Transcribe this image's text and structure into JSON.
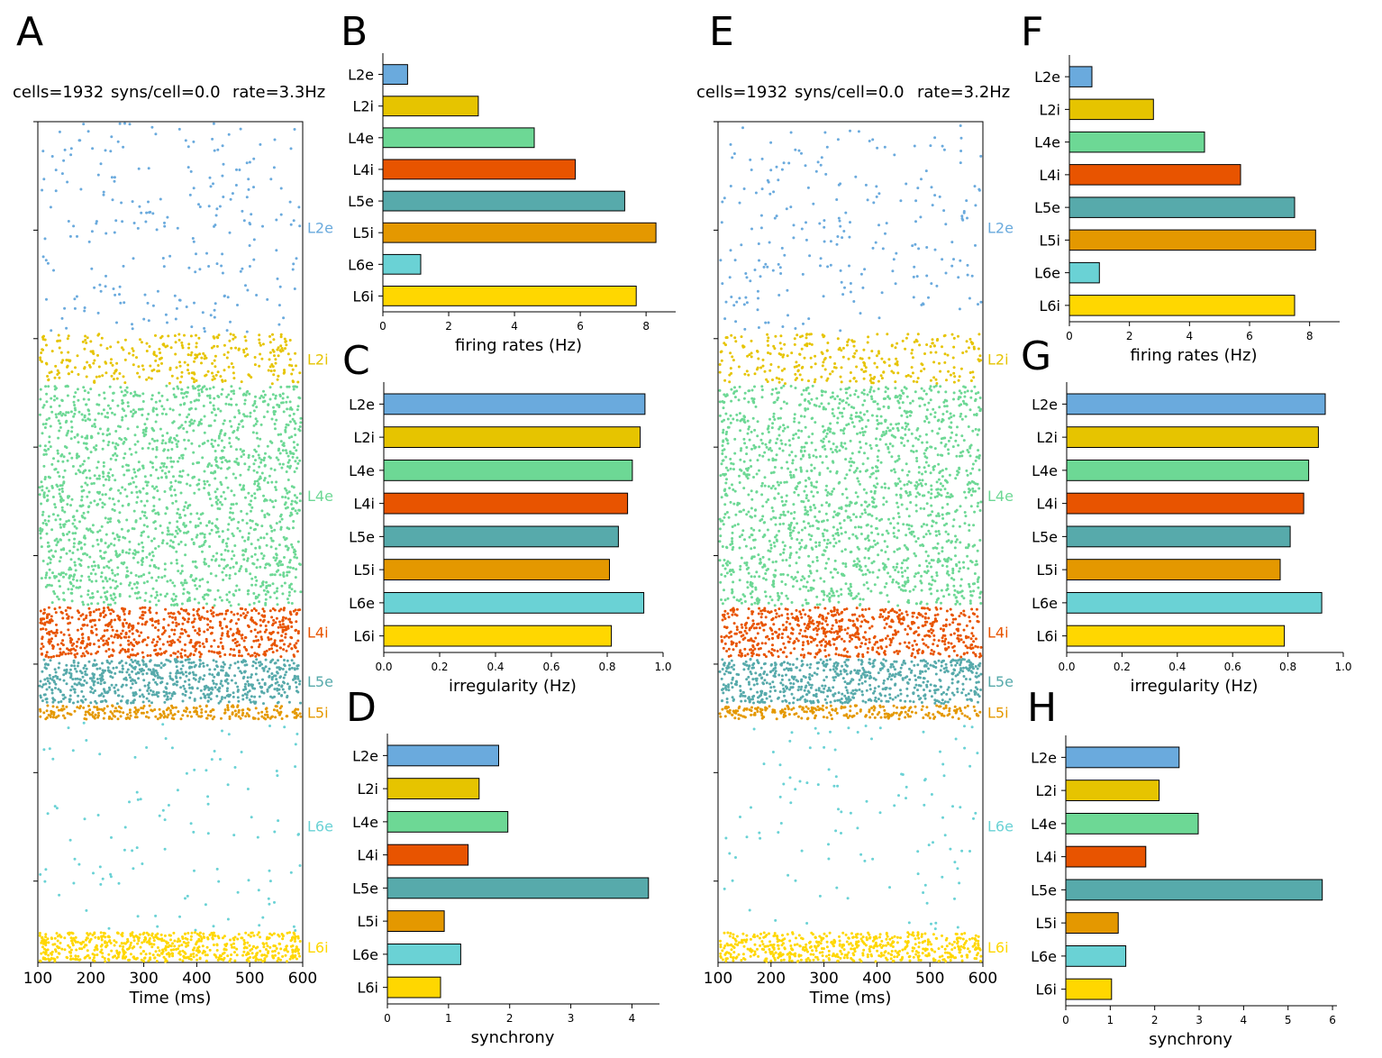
{
  "colors": {
    "L2e": "#6aaadd",
    "L2i": "#e6c400",
    "L4e": "#6dd895",
    "L4i": "#e85400",
    "L5e": "#57aaab",
    "L5i": "#e49800",
    "L6e": "#6ad2d5",
    "L6i": "#ffd700"
  },
  "chart_data": [
    {
      "type": "scatter",
      "id": "raster-A",
      "panel": "A",
      "header": {
        "cells": "cells=1932",
        "syns": "syns/cell=0.0",
        "rate": "rate=3.3Hz"
      },
      "xlabel": "Time (ms)",
      "xlim": [
        100,
        600
      ],
      "xticks": [
        100,
        200,
        300,
        400,
        500,
        600
      ],
      "populations": [
        {
          "name": "L2e",
          "label": "L2e",
          "band": [
            0.0,
            0.205
          ],
          "count": 230
        },
        {
          "name": "L2i",
          "label": "L2i",
          "band": [
            0.205,
            0.255
          ],
          "count": 320
        },
        {
          "name": "L4e",
          "label": "L4e",
          "band": [
            0.255,
            0.47
          ],
          "count": 1800
        },
        {
          "name": "L4i",
          "label": "L4i",
          "band": [
            0.47,
            0.52
          ],
          "count": 720
        },
        {
          "name": "L5e",
          "label": "L5e",
          "band": [
            0.52,
            0.565
          ],
          "count": 700
        },
        {
          "name": "L5i",
          "label": "L5i",
          "band": [
            0.565,
            0.58
          ],
          "count": 260
        },
        {
          "name": "L6e",
          "label": "L6e",
          "band": [
            0.58,
            0.785
          ],
          "count": 110
        },
        {
          "name": "L6i",
          "label": "L6i",
          "band": [
            0.785,
            0.815
          ],
          "count": 620
        }
      ]
    },
    {
      "type": "bar",
      "id": "bar-B",
      "panel": "B",
      "orientation": "horizontal",
      "categories": [
        "L2e",
        "L2i",
        "L4e",
        "L4i",
        "L5e",
        "L5i",
        "L6e",
        "L6i"
      ],
      "values": [
        0.75,
        2.9,
        4.6,
        5.85,
        7.35,
        8.3,
        1.15,
        7.7
      ],
      "xlabel": "firing rates (Hz)",
      "xlim": [
        0,
        8.9
      ],
      "xticks": [
        "0",
        "2",
        "4",
        "6",
        "8"
      ],
      "xtick_values": [
        0,
        2,
        4,
        6,
        8
      ]
    },
    {
      "type": "bar",
      "id": "bar-C",
      "panel": "C",
      "orientation": "horizontal",
      "categories": [
        "L2e",
        "L2i",
        "L4e",
        "L4i",
        "L5e",
        "L5i",
        "L6e",
        "L6i"
      ],
      "values": [
        0.935,
        0.918,
        0.89,
        0.873,
        0.84,
        0.808,
        0.931,
        0.815
      ],
      "xlabel": "irregularity (Hz)",
      "xlim": [
        0,
        1.0
      ],
      "xticks": [
        "0.0",
        "0.2",
        "0.4",
        "0.6",
        "0.8",
        "1.0"
      ],
      "xtick_values": [
        0,
        0.2,
        0.4,
        0.6,
        0.8,
        1.0
      ]
    },
    {
      "type": "bar",
      "id": "bar-D",
      "panel": "D",
      "orientation": "horizontal",
      "categories": [
        "L2e",
        "L2i",
        "L4e",
        "L4i",
        "L5e",
        "L5i",
        "L6e",
        "L6i"
      ],
      "values": [
        1.82,
        1.5,
        1.97,
        1.32,
        4.27,
        0.93,
        1.2,
        0.87
      ],
      "xlabel": "synchrony",
      "xlim": [
        0,
        4.45
      ],
      "xticks": [
        "0",
        "1",
        "2",
        "3",
        "4"
      ],
      "xtick_values": [
        0,
        1,
        2,
        3,
        4
      ]
    },
    {
      "type": "scatter",
      "id": "raster-E",
      "panel": "E",
      "header": {
        "cells": "cells=1932",
        "syns": "syns/cell=0.0",
        "rate": "rate=3.2Hz"
      },
      "xlabel": "Time (ms)",
      "xlim": [
        100,
        600
      ],
      "xticks": [
        100,
        200,
        300,
        400,
        500,
        600
      ],
      "populations": [
        {
          "name": "L2e",
          "label": "L2e",
          "band": [
            0.0,
            0.205
          ],
          "count": 230
        },
        {
          "name": "L2i",
          "label": "L2i",
          "band": [
            0.205,
            0.255
          ],
          "count": 300
        },
        {
          "name": "L4e",
          "label": "L4e",
          "band": [
            0.255,
            0.47
          ],
          "count": 1750
        },
        {
          "name": "L4i",
          "label": "L4i",
          "band": [
            0.47,
            0.52
          ],
          "count": 700
        },
        {
          "name": "L5e",
          "label": "L5e",
          "band": [
            0.52,
            0.565
          ],
          "count": 680
        },
        {
          "name": "L5i",
          "label": "L5i",
          "band": [
            0.565,
            0.58
          ],
          "count": 250
        },
        {
          "name": "L6e",
          "label": "L6e",
          "band": [
            0.58,
            0.785
          ],
          "count": 110
        },
        {
          "name": "L6i",
          "label": "L6i",
          "band": [
            0.785,
            0.815
          ],
          "count": 560
        }
      ]
    },
    {
      "type": "bar",
      "id": "bar-F",
      "panel": "F",
      "orientation": "horizontal",
      "categories": [
        "L2e",
        "L2i",
        "L4e",
        "L4i",
        "L5e",
        "L5i",
        "L6e",
        "L6i"
      ],
      "values": [
        0.75,
        2.8,
        4.5,
        5.7,
        7.5,
        8.2,
        1.0,
        7.5
      ],
      "xlabel": "firing rates (Hz)",
      "xlim": [
        0,
        9.0
      ],
      "xticks": [
        "0",
        "2",
        "4",
        "6",
        "8"
      ],
      "xtick_values": [
        0,
        2,
        4,
        6,
        8
      ]
    },
    {
      "type": "bar",
      "id": "bar-G",
      "panel": "G",
      "orientation": "horizontal",
      "categories": [
        "L2e",
        "L2i",
        "L4e",
        "L4i",
        "L5e",
        "L5i",
        "L6e",
        "L6i"
      ],
      "values": [
        0.935,
        0.91,
        0.875,
        0.857,
        0.808,
        0.772,
        0.922,
        0.787
      ],
      "xlabel": "irregularity (Hz)",
      "xlim": [
        0,
        1.0
      ],
      "xticks": [
        "0.0",
        "0.2",
        "0.4",
        "0.6",
        "0.8",
        "1.0"
      ],
      "xtick_values": [
        0,
        0.2,
        0.4,
        0.6,
        0.8,
        1.0
      ]
    },
    {
      "type": "bar",
      "id": "bar-H",
      "panel": "H",
      "orientation": "horizontal",
      "categories": [
        "L2e",
        "L2i",
        "L4e",
        "L4i",
        "L5e",
        "L5i",
        "L6e",
        "L6i"
      ],
      "values": [
        2.55,
        2.1,
        2.98,
        1.8,
        5.77,
        1.18,
        1.35,
        1.03
      ],
      "xlabel": "synchrony",
      "xlim": [
        0,
        6.1
      ],
      "xticks": [
        "0",
        "1",
        "2",
        "3",
        "4",
        "5",
        "6"
      ],
      "xtick_values": [
        0,
        1,
        2,
        3,
        4,
        5,
        6
      ]
    }
  ]
}
